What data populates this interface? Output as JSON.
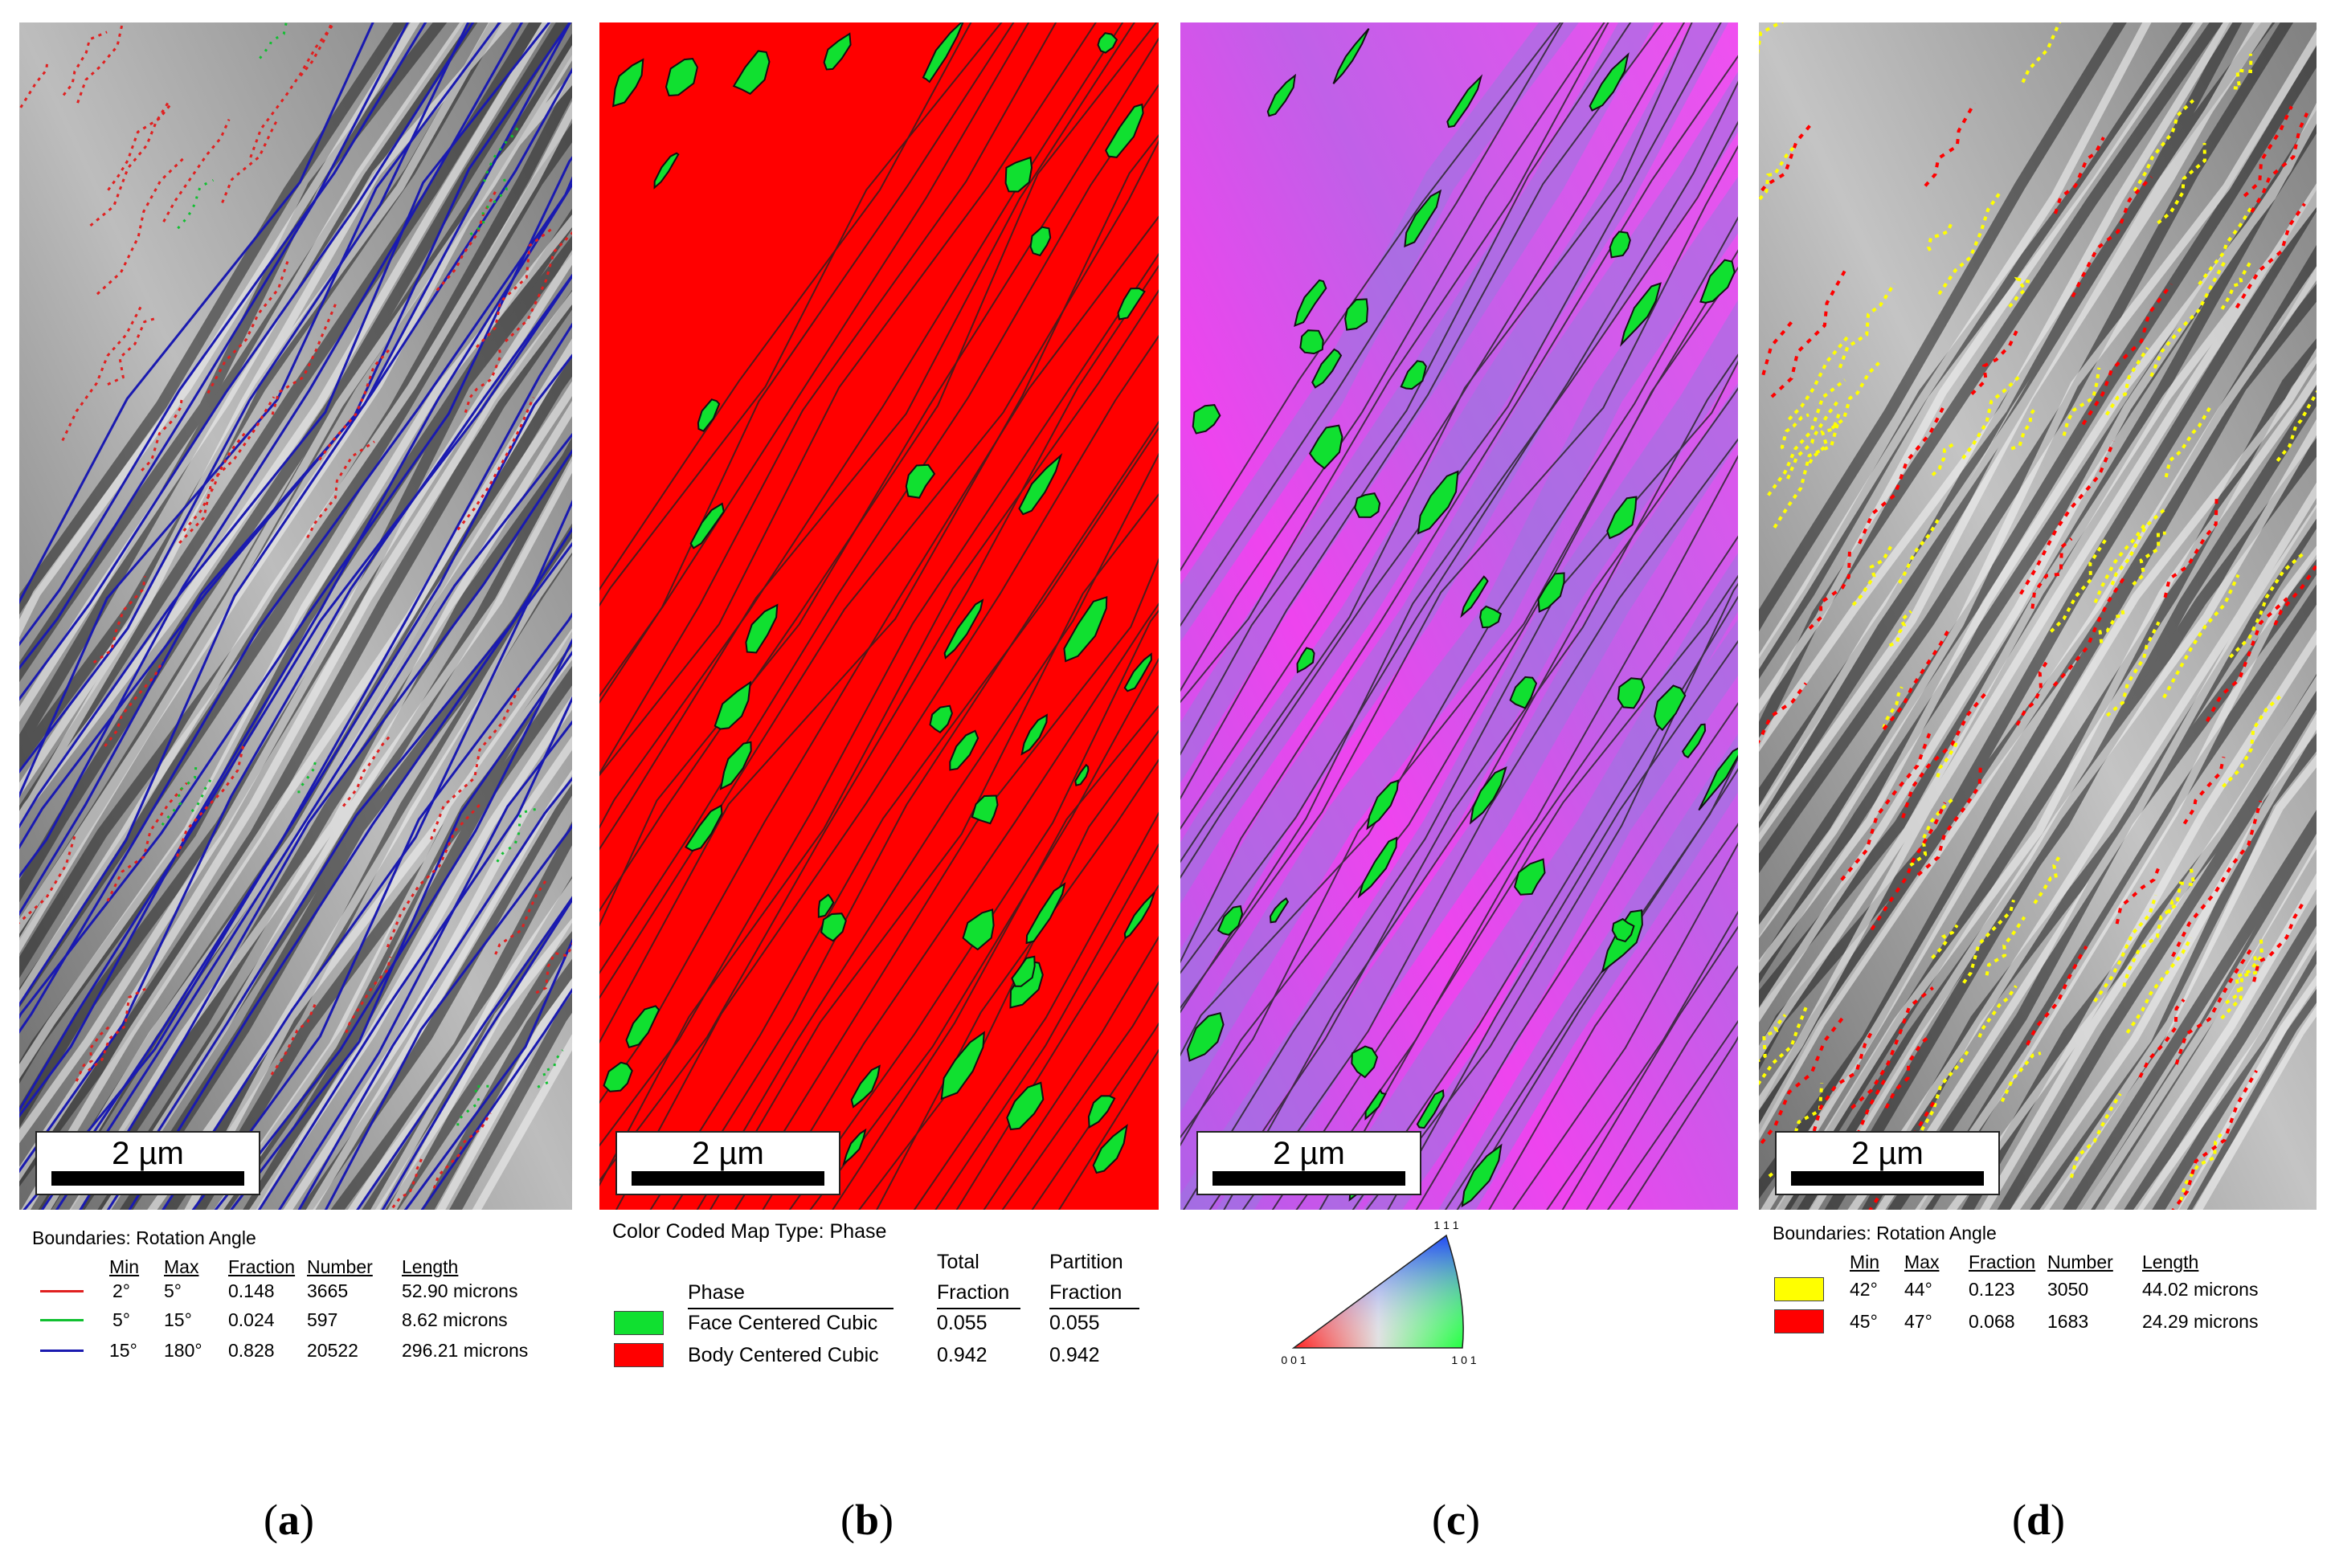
{
  "scale_bar_label": "2 µm",
  "panel_a": {
    "legend_title": "Boundaries: Rotation Angle",
    "headers": [
      "Min",
      "Max",
      "Fraction",
      "Number",
      "Length"
    ],
    "rows": [
      {
        "min": "2°",
        "max": "5°",
        "fraction": "0.148",
        "number": "3665",
        "length": "52.90 microns",
        "color": "#e02020"
      },
      {
        "min": "5°",
        "max": "15°",
        "fraction": "0.024",
        "number": "597",
        "length": "8.62 microns",
        "color": "#10c030"
      },
      {
        "min": "15°",
        "max": "180°",
        "fraction": "0.828",
        "number": "20522",
        "length": "296.21 microns",
        "color": "#1a1ab0"
      }
    ]
  },
  "panel_b": {
    "legend_title": "Color Coded Map Type: Phase",
    "header_phase": "Phase",
    "header_total_1": "Total",
    "header_total_2": "Fraction",
    "header_partition_1": "Partition",
    "header_partition_2": "Fraction",
    "rows": [
      {
        "phase": "Face Centered Cubic",
        "total": "0.055",
        "partition": "0.055",
        "color": "#10e030"
      },
      {
        "phase": "Body Centered Cubic",
        "total": "0.942",
        "partition": "0.942",
        "color": "#ff0000"
      }
    ]
  },
  "panel_c": {
    "ipf_key": {
      "top": "1 1 1",
      "left": "0 0 1",
      "right": "1 0 1"
    }
  },
  "panel_d": {
    "legend_title": "Boundaries: Rotation Angle",
    "headers": [
      "Min",
      "Max",
      "Fraction",
      "Number",
      "Length"
    ],
    "rows": [
      {
        "min": "42°",
        "max": "44°",
        "fraction": "0.123",
        "number": "3050",
        "length": "44.02 microns",
        "color": "#ffff00"
      },
      {
        "min": "45°",
        "max": "47°",
        "fraction": "0.068",
        "number": "1683",
        "length": "24.29 microns",
        "color": "#ff0000"
      }
    ]
  },
  "captions": [
    "a",
    "b",
    "c",
    "d"
  ],
  "colors": {
    "bcc_red": "#ff0000",
    "fcc_green": "#10e030",
    "ipf_magenta": "#ee44ee",
    "ipf_purple": "#a070e0"
  }
}
